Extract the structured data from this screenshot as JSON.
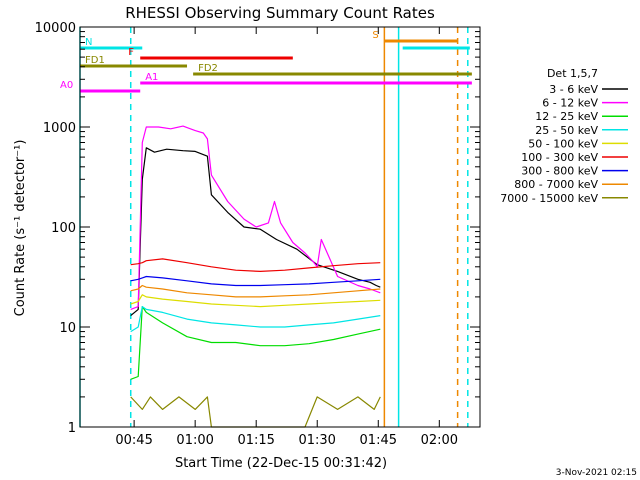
{
  "chart_data": {
    "type": "line",
    "title": "RHESSI Observing Summary Count Rates",
    "xlabel": "Start Time (22-Dec-15 00:31:42)",
    "ylabel": "Count Rate (s⁻¹ detector⁻¹)",
    "y_scale": "log",
    "ylim": [
      1,
      10000
    ],
    "xlim": [
      "00:31:42",
      "02:10:00"
    ],
    "x_ticks": [
      "00:45",
      "01:00",
      "01:15",
      "01:30",
      "01:45",
      "02:00"
    ],
    "y_ticks": [
      "1",
      "10",
      "100",
      "1000",
      "10000"
    ],
    "grid": false,
    "legend": {
      "title": "Det 1,5,7",
      "placement": "right",
      "entries": [
        {
          "label": "3 - 6 keV",
          "color": "#000000"
        },
        {
          "label": "6 - 12 keV",
          "color": "#ff00ff"
        },
        {
          "label": "12 - 25 keV",
          "color": "#00dd00"
        },
        {
          "label": "25 - 50 keV",
          "color": "#00e5e5"
        },
        {
          "label": "50 - 100 keV",
          "color": "#dddd00"
        },
        {
          "label": "100 - 300 keV",
          "color": "#ee0000"
        },
        {
          "label": "300 - 800 keV",
          "color": "#0000ee"
        },
        {
          "label": "800 - 7000 keV",
          "color": "#ee8800"
        },
        {
          "label": "7000 - 15000 keV",
          "color": "#888800"
        }
      ]
    },
    "series": [
      {
        "name": "3 - 6 keV",
        "color": "#000000",
        "x": [
          "00:44:10",
          "00:46:00",
          "00:47:00",
          "00:48:00",
          "00:50:00",
          "00:53:00",
          "00:57:00",
          "01:00:00",
          "01:03:00",
          "01:04:00",
          "01:08:00",
          "01:12:00",
          "01:16:00",
          "01:20:00",
          "01:25:00",
          "01:30:00",
          "01:35:00",
          "01:40:00",
          "01:43:00",
          "01:44:30",
          "01:45:30"
        ],
        "y": [
          13,
          15,
          300,
          620,
          560,
          600,
          580,
          570,
          510,
          210,
          140,
          100,
          95,
          75,
          60,
          42,
          36,
          30,
          28,
          26,
          25
        ]
      },
      {
        "name": "6 - 12 keV",
        "color": "#ff00ff",
        "x": [
          "00:44:10",
          "00:46:00",
          "00:47:00",
          "00:48:00",
          "00:51:00",
          "00:54:00",
          "00:57:00",
          "01:00:00",
          "01:02:00",
          "01:03:00",
          "01:04:00",
          "01:08:00",
          "01:12:00",
          "01:15:00",
          "01:18:00",
          "01:19:30",
          "01:21:00",
          "01:24:00",
          "01:27:00",
          "01:29:00",
          "01:30:00",
          "01:31:00",
          "01:35:00",
          "01:40:00",
          "01:43:00",
          "01:45:30"
        ],
        "y": [
          15,
          16,
          700,
          1000,
          1000,
          960,
          1020,
          920,
          870,
          760,
          330,
          180,
          120,
          100,
          110,
          180,
          110,
          70,
          55,
          45,
          40,
          75,
          32,
          26,
          24,
          22
        ]
      },
      {
        "name": "12 - 25 keV",
        "color": "#00dd00",
        "x": [
          "00:44:10",
          "00:46:00",
          "00:47:00",
          "00:48:00",
          "00:52:00",
          "00:58:00",
          "01:04:00",
          "01:10:00",
          "01:16:00",
          "01:22:00",
          "01:28:00",
          "01:34:00",
          "01:40:00",
          "01:45:30"
        ],
        "y": [
          3,
          3.2,
          16,
          14,
          11,
          8,
          7,
          7,
          6.5,
          6.5,
          6.8,
          7.5,
          8.5,
          9.5
        ]
      },
      {
        "name": "25 - 50 keV",
        "color": "#00e5e5",
        "x": [
          "00:44:10",
          "00:46:00",
          "00:47:00",
          "00:48:00",
          "00:52:00",
          "00:58:00",
          "01:04:00",
          "01:10:00",
          "01:16:00",
          "01:22:00",
          "01:28:00",
          "01:34:00",
          "01:40:00",
          "01:45:30"
        ],
        "y": [
          9,
          10,
          16,
          15,
          14,
          12,
          11,
          10.5,
          10,
          10,
          10.5,
          11,
          12,
          13
        ]
      },
      {
        "name": "50 - 100 keV",
        "color": "#dddd00",
        "x": [
          "00:44:10",
          "00:46:00",
          "00:47:00",
          "00:48:00",
          "00:52:00",
          "00:58:00",
          "01:04:00",
          "01:10:00",
          "01:16:00",
          "01:22:00",
          "01:28:00",
          "01:34:00",
          "01:40:00",
          "01:45:30"
        ],
        "y": [
          17,
          18,
          21,
          20,
          19,
          18,
          17,
          16.5,
          16,
          16.5,
          17,
          17.5,
          18,
          18.5
        ]
      },
      {
        "name": "100 - 300 keV",
        "color": "#ee0000",
        "x": [
          "00:44:10",
          "00:46:00",
          "00:47:00",
          "00:48:00",
          "00:52:00",
          "00:58:00",
          "01:04:00",
          "01:10:00",
          "01:16:00",
          "01:22:00",
          "01:28:00",
          "01:34:00",
          "01:40:00",
          "01:45:30"
        ],
        "y": [
          42,
          43,
          44,
          46,
          48,
          44,
          40,
          37,
          36,
          37,
          39,
          41,
          43,
          44
        ]
      },
      {
        "name": "300 - 800 keV",
        "color": "#0000ee",
        "x": [
          "00:44:10",
          "00:46:00",
          "00:47:00",
          "00:48:00",
          "00:52:00",
          "00:58:00",
          "01:04:00",
          "01:10:00",
          "01:16:00",
          "01:22:00",
          "01:28:00",
          "01:34:00",
          "01:40:00",
          "01:45:30"
        ],
        "y": [
          29,
          30,
          31,
          32,
          31,
          29,
          27,
          26,
          26,
          26.5,
          27,
          28,
          29,
          30
        ]
      },
      {
        "name": "800 - 7000 keV",
        "color": "#ee8800",
        "x": [
          "00:44:10",
          "00:46:00",
          "00:47:00",
          "00:48:00",
          "00:52:00",
          "00:58:00",
          "01:04:00",
          "01:10:00",
          "01:16:00",
          "01:22:00",
          "01:28:00",
          "01:34:00",
          "01:40:00",
          "01:45:30"
        ],
        "y": [
          23,
          24,
          26,
          25,
          24,
          22,
          21,
          20,
          20,
          20.5,
          21,
          22,
          23,
          24
        ]
      },
      {
        "name": "7000 - 15000 keV",
        "color": "#888800",
        "x": [
          "00:44:10",
          "00:47:00",
          "00:49:00",
          "00:52:00",
          "00:56:00",
          "01:00:00",
          "01:03:00",
          "01:04:00",
          "01:27:00",
          "01:30:00",
          "01:35:00",
          "01:40:00",
          "01:44:00",
          "01:45:30"
        ],
        "y": [
          2,
          1.5,
          2,
          1.5,
          2,
          1.5,
          2,
          1,
          1,
          2,
          1.5,
          2,
          1.5,
          2
        ]
      }
    ],
    "vertical_markers": [
      {
        "color": "#00e5e5",
        "style": "solid",
        "x": "00:31:42"
      },
      {
        "color": "#00e5e5",
        "style": "dashed",
        "x": "00:44:10"
      },
      {
        "color": "#ee8800",
        "style": "solid",
        "x": "01:46:30"
      },
      {
        "color": "#00e5e5",
        "style": "solid",
        "x": "01:50:00"
      },
      {
        "color": "#ee8800",
        "style": "dashed",
        "x": "02:04:30"
      },
      {
        "color": "#00e5e5",
        "style": "dashed",
        "x": "02:07:00"
      }
    ],
    "flag_bars": [
      {
        "label": "N",
        "color": "#00e5e5",
        "x_start": "00:31:42",
        "x_end": "00:47:00"
      },
      {
        "label": "",
        "color": "#00e5e5",
        "x_start": "01:51:00",
        "x_end": "02:07:30"
      },
      {
        "label": "S",
        "color": "#ee8800",
        "x_start": "01:46:30",
        "x_end": "02:04:30"
      },
      {
        "label": "F",
        "color": "#ee0000",
        "x_start": "00:46:30",
        "x_end": "01:24:00"
      },
      {
        "label": "FD1",
        "color": "#888800",
        "x_start": "00:31:42",
        "x_end": "00:58:00"
      },
      {
        "label": "FD2",
        "color": "#888800",
        "x_start": "00:59:30",
        "x_end": "02:08:00"
      },
      {
        "label": "A0",
        "color": "#ff00ff",
        "x_start": "00:31:42",
        "x_end": "00:46:30"
      },
      {
        "label": "A1",
        "color": "#ff00ff",
        "x_start": "00:46:30",
        "x_end": "02:08:00"
      }
    ]
  },
  "footer_timestamp": "3-Nov-2021 02:15"
}
